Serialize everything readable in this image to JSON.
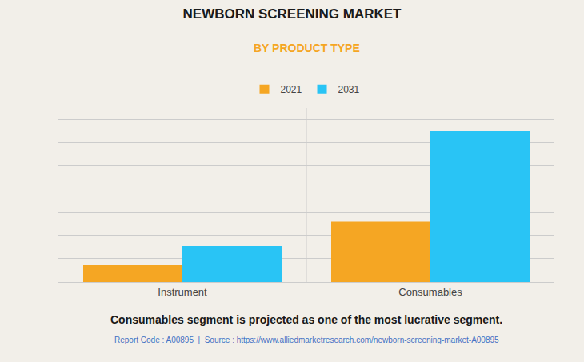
{
  "chart_data": {
    "type": "bar",
    "title": "NEWBORN SCREENING MARKET",
    "subtitle": "BY PRODUCT TYPE",
    "categories": [
      "Instrument",
      "Consumables"
    ],
    "series": [
      {
        "name": "2021",
        "color": "#F5A623",
        "values": [
          0.75,
          2.6
        ]
      },
      {
        "name": "2031",
        "color": "#29C4F5",
        "values": [
          1.55,
          6.5
        ]
      }
    ],
    "ylim": [
      0,
      7.5
    ],
    "yticks": [
      0,
      1,
      2,
      3,
      4,
      5,
      6,
      7
    ],
    "grid": true,
    "tick_labels": "x",
    "legend": "top",
    "annotations": [
      "Consumables segment is projected as one of the most lucrative segment.",
      "Report Code : A00895  |  Source : https://www.alliedmarketresearch.com/newborn-screening-market-A00895"
    ]
  }
}
